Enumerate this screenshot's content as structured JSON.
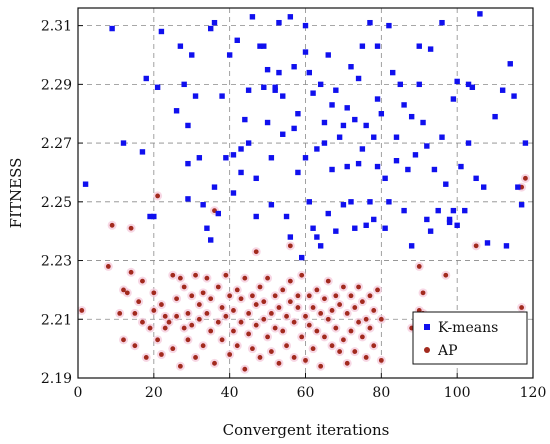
{
  "chart_data": {
    "type": "scatter",
    "xlabel": "Convergent iterations",
    "ylabel": "FITNESS",
    "xlim": [
      0,
      120
    ],
    "ylim": [
      2.19,
      2.316
    ],
    "x_ticks": [
      "0",
      "20",
      "40",
      "60",
      "80",
      "100",
      "120"
    ],
    "y_ticks": [
      "2.19",
      "2.21",
      "2.23",
      "2.25",
      "2.27",
      "2.29",
      "2.31"
    ],
    "grid": true,
    "legend_position": "bottom-right",
    "series": [
      {
        "name": "K-means",
        "marker": "square",
        "color": "#1010ee",
        "points": [
          [
            2,
            2.256
          ],
          [
            9,
            2.309
          ],
          [
            12,
            2.27
          ],
          [
            17,
            2.267
          ],
          [
            18,
            2.292
          ],
          [
            19,
            2.245
          ],
          [
            20,
            2.245
          ],
          [
            21,
            2.289
          ],
          [
            22,
            2.308
          ],
          [
            26,
            2.281
          ],
          [
            27,
            2.303
          ],
          [
            28,
            2.29
          ],
          [
            29,
            2.276
          ],
          [
            29,
            2.263
          ],
          [
            29,
            2.251
          ],
          [
            30,
            2.3
          ],
          [
            31,
            2.286
          ],
          [
            32,
            2.265
          ],
          [
            33,
            2.249
          ],
          [
            34,
            2.241
          ],
          [
            35,
            2.237
          ],
          [
            35,
            2.309
          ],
          [
            36,
            2.311
          ],
          [
            36,
            2.255
          ],
          [
            37,
            2.246
          ],
          [
            38,
            2.286
          ],
          [
            39,
            2.265
          ],
          [
            40,
            2.3
          ],
          [
            41,
            2.266
          ],
          [
            41,
            2.253
          ],
          [
            42,
            2.305
          ],
          [
            43,
            2.268
          ],
          [
            43,
            2.26
          ],
          [
            44,
            2.278
          ],
          [
            45,
            2.288
          ],
          [
            45,
            2.27
          ],
          [
            46,
            2.313
          ],
          [
            47,
            2.258
          ],
          [
            47,
            2.245
          ],
          [
            48,
            2.303
          ],
          [
            49,
            2.303
          ],
          [
            49,
            2.289
          ],
          [
            50,
            2.295
          ],
          [
            50,
            2.277
          ],
          [
            51,
            2.265
          ],
          [
            51,
            2.249
          ],
          [
            52,
            2.288
          ],
          [
            52,
            2.289
          ],
          [
            53,
            2.311
          ],
          [
            53,
            2.294
          ],
          [
            54,
            2.286
          ],
          [
            54,
            2.273
          ],
          [
            55,
            2.245
          ],
          [
            56,
            2.238
          ],
          [
            56,
            2.313
          ],
          [
            57,
            2.296
          ],
          [
            57,
            2.275
          ],
          [
            58,
            2.26
          ],
          [
            58,
            2.28
          ],
          [
            59,
            2.231
          ],
          [
            60,
            2.31
          ],
          [
            60,
            2.301
          ],
          [
            60,
            2.265
          ],
          [
            61,
            2.294
          ],
          [
            61,
            2.25
          ],
          [
            62,
            2.241
          ],
          [
            62,
            2.287
          ],
          [
            63,
            2.268
          ],
          [
            63,
            2.238
          ],
          [
            64,
            2.29
          ],
          [
            64,
            2.235
          ],
          [
            65,
            2.27
          ],
          [
            65,
            2.277
          ],
          [
            66,
            2.3
          ],
          [
            66,
            2.246
          ],
          [
            67,
            2.261
          ],
          [
            67,
            2.283
          ],
          [
            68,
            2.24
          ],
          [
            68,
            2.288
          ],
          [
            69,
            2.272
          ],
          [
            70,
            2.276
          ],
          [
            70,
            2.249
          ],
          [
            71,
            2.282
          ],
          [
            71,
            2.262
          ],
          [
            72,
            2.296
          ],
          [
            72,
            2.25
          ],
          [
            73,
            2.241
          ],
          [
            73,
            2.278
          ],
          [
            74,
            2.292
          ],
          [
            74,
            2.263
          ],
          [
            75,
            2.303
          ],
          [
            75,
            2.268
          ],
          [
            76,
            2.276
          ],
          [
            76,
            2.242
          ],
          [
            77,
            2.311
          ],
          [
            77,
            2.25
          ],
          [
            78,
            2.272
          ],
          [
            78,
            2.244
          ],
          [
            79,
            2.285
          ],
          [
            79,
            2.303
          ],
          [
            79,
            2.262
          ],
          [
            80,
            2.28
          ],
          [
            81,
            2.258
          ],
          [
            81,
            2.241
          ],
          [
            82,
            2.31
          ],
          [
            82,
            2.25
          ],
          [
            83,
            2.294
          ],
          [
            84,
            2.272
          ],
          [
            84,
            2.264
          ],
          [
            85,
            2.29
          ],
          [
            86,
            2.247
          ],
          [
            86,
            2.283
          ],
          [
            87,
            2.261
          ],
          [
            88,
            2.279
          ],
          [
            88,
            2.235
          ],
          [
            89,
            2.266
          ],
          [
            90,
            2.29
          ],
          [
            90,
            2.303
          ],
          [
            91,
            2.277
          ],
          [
            92,
            2.244
          ],
          [
            92,
            2.269
          ],
          [
            93,
            2.24
          ],
          [
            93,
            2.302
          ],
          [
            94,
            2.261
          ],
          [
            95,
            2.247
          ],
          [
            96,
            2.272
          ],
          [
            96,
            2.311
          ],
          [
            97,
            2.256
          ],
          [
            98,
            2.244
          ],
          [
            98,
            2.243
          ],
          [
            99,
            2.285
          ],
          [
            99,
            2.247
          ],
          [
            100,
            2.242
          ],
          [
            100,
            2.291
          ],
          [
            101,
            2.262
          ],
          [
            102,
            2.247
          ],
          [
            103,
            2.29
          ],
          [
            103,
            2.27
          ],
          [
            104,
            2.289
          ],
          [
            105,
            2.258
          ],
          [
            106,
            2.314
          ],
          [
            107,
            2.255
          ],
          [
            108,
            2.236
          ],
          [
            110,
            2.279
          ],
          [
            112,
            2.288
          ],
          [
            113,
            2.235
          ],
          [
            114,
            2.297
          ],
          [
            115,
            2.286
          ],
          [
            116,
            2.255
          ],
          [
            117,
            2.249
          ],
          [
            118,
            2.27
          ]
        ]
      },
      {
        "name": "AP",
        "marker": "circle",
        "color": "#a22a1e",
        "points": [
          [
            1,
            2.213
          ],
          [
            8,
            2.228
          ],
          [
            9,
            2.242
          ],
          [
            11,
            2.212
          ],
          [
            12,
            2.22
          ],
          [
            12,
            2.203
          ],
          [
            13,
            2.219
          ],
          [
            14,
            2.226
          ],
          [
            14,
            2.241
          ],
          [
            15,
            2.212
          ],
          [
            15,
            2.201
          ],
          [
            16,
            2.216
          ],
          [
            17,
            2.223
          ],
          [
            17,
            2.209
          ],
          [
            18,
            2.197
          ],
          [
            19,
            2.207
          ],
          [
            20,
            2.219
          ],
          [
            20,
            2.213
          ],
          [
            21,
            2.203
          ],
          [
            21,
            2.252
          ],
          [
            22,
            2.215
          ],
          [
            22,
            2.198
          ],
          [
            23,
            2.211
          ],
          [
            23,
            2.207
          ],
          [
            24,
            2.209
          ],
          [
            25,
            2.225
          ],
          [
            25,
            2.2
          ],
          [
            26,
            2.217
          ],
          [
            26,
            2.211
          ],
          [
            27,
            2.224
          ],
          [
            27,
            2.194
          ],
          [
            28,
            2.207
          ],
          [
            28,
            2.221
          ],
          [
            29,
            2.212
          ],
          [
            29,
            2.203
          ],
          [
            30,
            2.218
          ],
          [
            30,
            2.208
          ],
          [
            31,
            2.197
          ],
          [
            31,
            2.225
          ],
          [
            32,
            2.215
          ],
          [
            32,
            2.21
          ],
          [
            33,
            2.219
          ],
          [
            33,
            2.201
          ],
          [
            34,
            2.212
          ],
          [
            34,
            2.224
          ],
          [
            35,
            2.206
          ],
          [
            35,
            2.217
          ],
          [
            36,
            2.195
          ],
          [
            36,
            2.247
          ],
          [
            37,
            2.221
          ],
          [
            37,
            2.209
          ],
          [
            38,
            2.214
          ],
          [
            38,
            2.203
          ],
          [
            39,
            2.211
          ],
          [
            39,
            2.225
          ],
          [
            40,
            2.218
          ],
          [
            40,
            2.198
          ],
          [
            41,
            2.213
          ],
          [
            41,
            2.206
          ],
          [
            42,
            2.22
          ],
          [
            42,
            2.201
          ],
          [
            43,
            2.217
          ],
          [
            43,
            2.209
          ],
          [
            44,
            2.224
          ],
          [
            44,
            2.193
          ],
          [
            45,
            2.212
          ],
          [
            45,
            2.205
          ],
          [
            46,
            2.218
          ],
          [
            46,
            2.2
          ],
          [
            47,
            2.215
          ],
          [
            47,
            2.208
          ],
          [
            48,
            2.221
          ],
          [
            48,
            2.197
          ],
          [
            49,
            2.21
          ],
          [
            49,
            2.216
          ],
          [
            50,
            2.204
          ],
          [
            50,
            2.224
          ],
          [
            51,
            2.212
          ],
          [
            51,
            2.199
          ],
          [
            52,
            2.218
          ],
          [
            52,
            2.207
          ],
          [
            53,
            2.214
          ],
          [
            53,
            2.195
          ],
          [
            54,
            2.22
          ],
          [
            54,
            2.206
          ],
          [
            55,
            2.211
          ],
          [
            55,
            2.201
          ],
          [
            56,
            2.216
          ],
          [
            56,
            2.223
          ],
          [
            57,
            2.209
          ],
          [
            57,
            2.197
          ],
          [
            58,
            2.214
          ],
          [
            58,
            2.218
          ],
          [
            59,
            2.204
          ],
          [
            59,
            2.225
          ],
          [
            60,
            2.211
          ],
          [
            60,
            2.196
          ],
          [
            61,
            2.218
          ],
          [
            61,
            2.208
          ],
          [
            62,
            2.214
          ],
          [
            62,
            2.2
          ],
          [
            63,
            2.22
          ],
          [
            63,
            2.206
          ],
          [
            64,
            2.212
          ],
          [
            64,
            2.194
          ],
          [
            65,
            2.217
          ],
          [
            65,
            2.204
          ],
          [
            66,
            2.21
          ],
          [
            66,
            2.223
          ],
          [
            67,
            2.201
          ],
          [
            67,
            2.213
          ],
          [
            68,
            2.218
          ],
          [
            68,
            2.207
          ],
          [
            69,
            2.199
          ],
          [
            69,
            2.215
          ],
          [
            70,
            2.221
          ],
          [
            70,
            2.203
          ],
          [
            71,
            2.212
          ],
          [
            71,
            2.195
          ],
          [
            72,
            2.218
          ],
          [
            72,
            2.206
          ],
          [
            73,
            2.214
          ],
          [
            73,
            2.199
          ],
          [
            74,
            2.221
          ],
          [
            74,
            2.209
          ],
          [
            75,
            2.204
          ],
          [
            75,
            2.216
          ],
          [
            76,
            2.21
          ],
          [
            76,
            2.197
          ],
          [
            77,
            2.218
          ],
          [
            77,
            2.207
          ],
          [
            78,
            2.213
          ],
          [
            78,
            2.201
          ],
          [
            79,
            2.22
          ],
          [
            80,
            2.21
          ],
          [
            80,
            2.196
          ],
          [
            90,
            2.228
          ],
          [
            91,
            2.219
          ],
          [
            91,
            2.212
          ],
          [
            97,
            2.225
          ],
          [
            105,
            2.235
          ],
          [
            117,
            2.214
          ],
          [
            117,
            2.255
          ],
          [
            118,
            2.258
          ],
          [
            111,
            2.206
          ],
          [
            56,
            2.235
          ],
          [
            90,
            2.213
          ],
          [
            47,
            2.233
          ],
          [
            88,
            2.207
          ]
        ]
      }
    ]
  }
}
